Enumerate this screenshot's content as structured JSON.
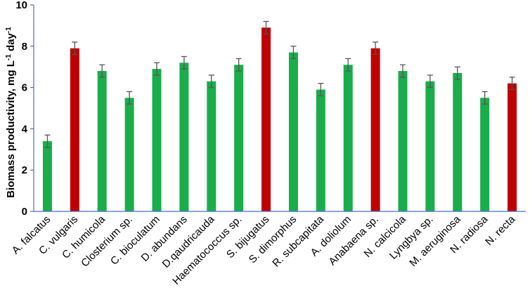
{
  "chart_data": {
    "type": "bar",
    "title": "",
    "xlabel": "",
    "ylabel": "Biomass productivity, mg L",
    "ylabel_sup1": "-1",
    "ylabel_mid": " day",
    "ylabel_sup2": "-1",
    "ylim": [
      0,
      10
    ],
    "yticks": [
      0,
      2,
      4,
      6,
      8,
      10
    ],
    "grid": false,
    "legend": "none",
    "categories": [
      "A. falcatus",
      "C. vulgaris",
      "C. humicola",
      "Closterium sp.",
      "C. bioculatum",
      "D. abundans",
      "D.qaudricauda",
      "Haematococcus sp.",
      "S. bijugatus",
      "S. dimorphus",
      "R. subcapitata",
      "A. doliolum",
      "Anabaena sp.",
      "N. calcicola",
      "Lyngbya sp.",
      "M. aeruginosa",
      "N. radiosa",
      "N. recta"
    ],
    "values": [
      3.4,
      7.9,
      6.8,
      5.5,
      6.9,
      7.2,
      6.3,
      7.1,
      8.9,
      7.7,
      5.9,
      7.1,
      7.9,
      6.8,
      6.3,
      6.7,
      5.5,
      6.2
    ],
    "errors": [
      0.3,
      0.3,
      0.3,
      0.3,
      0.3,
      0.3,
      0.3,
      0.3,
      0.3,
      0.3,
      0.3,
      0.3,
      0.3,
      0.3,
      0.3,
      0.3,
      0.3,
      0.3
    ],
    "bar_colors": [
      "#1aad4b",
      "#c00000",
      "#1aad4b",
      "#1aad4b",
      "#1aad4b",
      "#1aad4b",
      "#1aad4b",
      "#1aad4b",
      "#c00000",
      "#1aad4b",
      "#1aad4b",
      "#1aad4b",
      "#c00000",
      "#1aad4b",
      "#1aad4b",
      "#1aad4b",
      "#1aad4b",
      "#c00000"
    ],
    "axis_color": "#4472c4",
    "error_bar_color": "#555555"
  }
}
